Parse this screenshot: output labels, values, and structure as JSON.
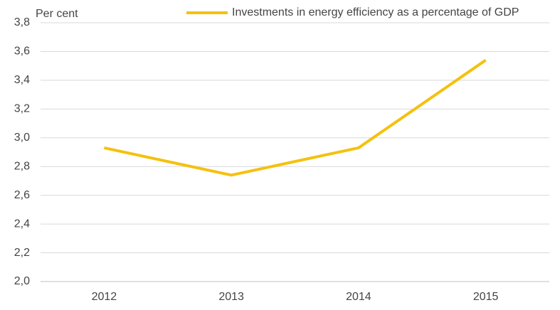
{
  "chart_data": {
    "type": "line",
    "y_label": "Per cent",
    "categories": [
      "2012",
      "2013",
      "2014",
      "2015"
    ],
    "series": [
      {
        "name": "Investments in energy efficiency as a percentage of GDP",
        "color": "#f5c10e",
        "values": [
          2.93,
          2.74,
          2.93,
          3.54
        ]
      }
    ],
    "ylim": [
      2.0,
      3.8
    ],
    "yticks": [
      {
        "value": 2.0,
        "label": "2,0"
      },
      {
        "value": 2.2,
        "label": "2,2"
      },
      {
        "value": 2.4,
        "label": "2,4"
      },
      {
        "value": 2.6,
        "label": "2,6"
      },
      {
        "value": 2.8,
        "label": "2,8"
      },
      {
        "value": 3.0,
        "label": "3,0"
      },
      {
        "value": 3.2,
        "label": "3,2"
      },
      {
        "value": 3.4,
        "label": "3,4"
      },
      {
        "value": 3.6,
        "label": "3,6"
      },
      {
        "value": 3.8,
        "label": "3,8"
      }
    ],
    "grid": true,
    "legend": "top-right"
  }
}
